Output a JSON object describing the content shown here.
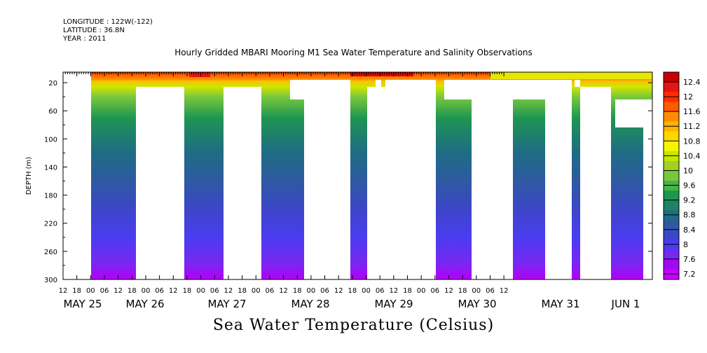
{
  "header": {
    "longitude": "LONGITUDE : 122W(-122)",
    "latitude": "LATITUDE : 36.8N",
    "year": "YEAR : 2011"
  },
  "chart_data": {
    "type": "heatmap",
    "title": "Hourly Gridded MBARI Mooring M1 Sea Water Temperature and Salinity Observations",
    "xlabel": "Sea Water Temperature (Celsius)",
    "ylabel": "DEPTH (m)",
    "x_hour_ticks": [
      "12",
      "18",
      "00",
      "06",
      "12",
      "18",
      "00",
      "06",
      "12",
      "18",
      "00",
      "06",
      "12",
      "18",
      "00",
      "06",
      "12",
      "18",
      "00",
      "06",
      "12",
      "18",
      "00",
      "06",
      "12",
      "18",
      "00",
      "06",
      "12",
      "18",
      "00",
      "06",
      "12"
    ],
    "x_date_labels": [
      "MAY 25",
      "MAY 26",
      "MAY 27",
      "MAY 28",
      "MAY 29",
      "MAY 30",
      "MAY 31",
      "JUN  1"
    ],
    "y_ticks": [
      "20",
      "60",
      "100",
      "140",
      "180",
      "220",
      "260",
      "300"
    ],
    "ylim": [
      300,
      5
    ],
    "colorbar_labels": [
      "12.4",
      "12",
      "11.6",
      "11.2",
      "10.8",
      "10.4",
      "10",
      "9.6",
      "9.2",
      "8.8",
      "8.4",
      "8",
      "7.6",
      "7.2"
    ],
    "colorbar_colors": [
      "#c80000",
      "#e61414",
      "#ff2d00",
      "#ff5a00",
      "#ff8c00",
      "#ffb400",
      "#ffd700",
      "#f5f500",
      "#c8e600",
      "#a0d21e",
      "#78c83c",
      "#46b446",
      "#1e9650",
      "#1e8264",
      "#1e6e82",
      "#2d5aa0",
      "#3c46c8",
      "#4b3cf0",
      "#7828f0",
      "#a00af0",
      "#c800ff"
    ],
    "temperature_profile": [
      {
        "depth": 10,
        "temp": 11.4
      },
      {
        "depth": 20,
        "temp": 10.6
      },
      {
        "depth": 40,
        "temp": 9.6
      },
      {
        "depth": 60,
        "temp": 9.0
      },
      {
        "depth": 100,
        "temp": 8.6
      },
      {
        "depth": 140,
        "temp": 8.3
      },
      {
        "depth": 180,
        "temp": 8.0
      },
      {
        "depth": 220,
        "temp": 7.8
      },
      {
        "depth": 260,
        "temp": 7.5
      },
      {
        "depth": 300,
        "temp": 7.2
      }
    ]
  }
}
